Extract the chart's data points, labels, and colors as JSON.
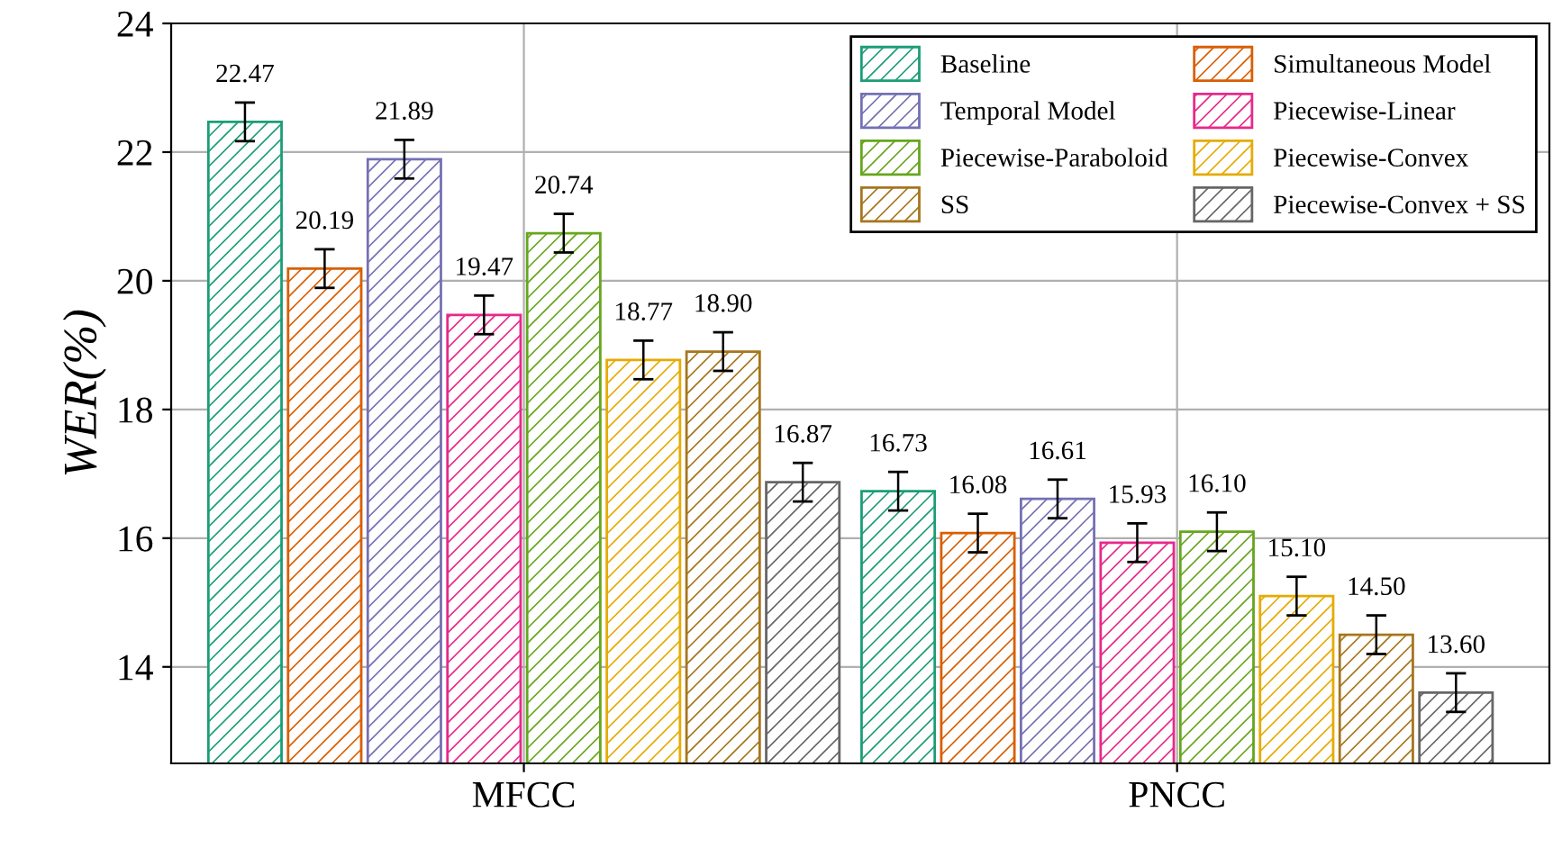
{
  "chart_data": {
    "type": "bar",
    "ylabel": "WER(%)",
    "categories": [
      "MFCC",
      "PNCC"
    ],
    "series": [
      {
        "name": "Baseline",
        "color": "#1b9e77",
        "values": [
          22.47,
          16.73
        ],
        "errors": [
          0.3,
          0.3
        ],
        "value_labels": [
          "22.47",
          "16.73"
        ]
      },
      {
        "name": "Simultaneous Model",
        "color": "#d95f02",
        "values": [
          20.19,
          16.08
        ],
        "errors": [
          0.3,
          0.3
        ],
        "value_labels": [
          "20.19",
          "16.08"
        ]
      },
      {
        "name": "Temporal Model",
        "color": "#7570b3",
        "values": [
          21.89,
          16.61
        ],
        "errors": [
          0.3,
          0.3
        ],
        "value_labels": [
          "21.89",
          "16.61"
        ]
      },
      {
        "name": "Piecewise-Linear",
        "color": "#e7298a",
        "values": [
          19.47,
          15.93
        ],
        "errors": [
          0.3,
          0.3
        ],
        "value_labels": [
          "19.47",
          "15.93"
        ]
      },
      {
        "name": "Piecewise-Paraboloid",
        "color": "#66a61e",
        "values": [
          20.74,
          16.1
        ],
        "errors": [
          0.3,
          0.3
        ],
        "value_labels": [
          "20.74",
          "16.10"
        ]
      },
      {
        "name": "Piecewise-Convex",
        "color": "#e6ab02",
        "values": [
          18.77,
          15.1
        ],
        "errors": [
          0.3,
          0.3
        ],
        "value_labels": [
          "18.77",
          "15.10"
        ]
      },
      {
        "name": "SS",
        "color": "#a6761d",
        "values": [
          18.9,
          14.5
        ],
        "errors": [
          0.3,
          0.3
        ],
        "value_labels": [
          "18.90",
          "14.50"
        ]
      },
      {
        "name": "Piecewise-Convex + SS",
        "color": "#666666",
        "values": [
          16.87,
          13.6
        ],
        "errors": [
          0.3,
          0.3
        ],
        "value_labels": [
          "16.87",
          "13.60"
        ]
      }
    ],
    "ylim": [
      12.5,
      24
    ],
    "yticks": [
      14,
      16,
      18,
      20,
      22,
      24
    ],
    "grid": true,
    "legend": "top right"
  }
}
